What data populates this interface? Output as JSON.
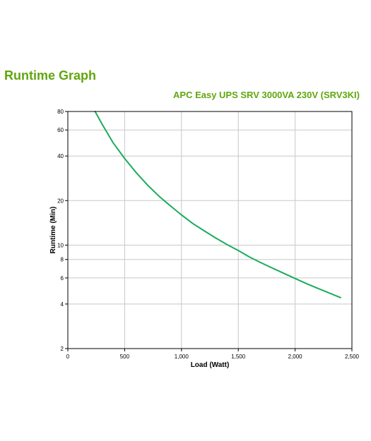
{
  "page": {
    "title": "Runtime Graph",
    "product": "APC Easy UPS SRV 3000VA 230V (SRV3KI)"
  },
  "colors": {
    "title": "#61a60e",
    "line": "#1bab5d",
    "grid": "#c8c8c8",
    "frame": "#000000"
  },
  "chart_data": {
    "type": "line",
    "title": "APC Easy UPS SRV 3000VA 230V (SRV3KI)",
    "xlabel": "Load (Watt)",
    "ylabel": "Runtime (Min)",
    "xlim": [
      0,
      2500
    ],
    "ylim": [
      2,
      80
    ],
    "yscale": "log",
    "grid": true,
    "x_ticks": [
      0,
      500,
      1000,
      1500,
      2000,
      2500
    ],
    "x_tick_labels": [
      "0",
      "500",
      "1,000",
      "1,500",
      "2,000",
      "2,500"
    ],
    "y_ticks": [
      2,
      4,
      6,
      8,
      10,
      20,
      40,
      60,
      80
    ],
    "y_tick_labels": [
      "2",
      "4",
      "6",
      "8",
      "10",
      "20",
      "40",
      "60",
      "80"
    ],
    "y_grid": [
      4,
      6,
      8,
      10,
      20,
      40,
      60,
      80
    ],
    "series": [
      {
        "x": [
          240,
          300,
          400,
          500,
          600,
          700,
          800,
          900,
          1000,
          1100,
          1200,
          1300,
          1400,
          1500,
          1600,
          1700,
          1800,
          1900,
          2000,
          2100,
          2200,
          2300,
          2400
        ],
        "y": [
          80,
          66,
          49,
          38.5,
          31,
          25.5,
          21.5,
          18.5,
          16,
          14,
          12.5,
          11.2,
          10.1,
          9.2,
          8.3,
          7.6,
          7.0,
          6.45,
          5.95,
          5.5,
          5.1,
          4.75,
          4.42
        ]
      }
    ]
  }
}
